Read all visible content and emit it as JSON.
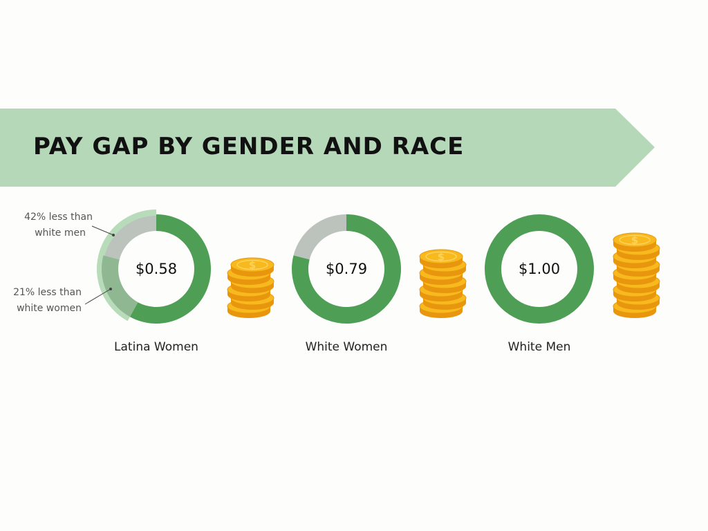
{
  "title": "PAY GAP BY GENDER AND RACE",
  "colors": {
    "banner": "#b5d8b8",
    "ring_value": "#4e9f55",
    "ring_gap": "#bcc3bd",
    "latina_outer_band": "#b8dcba",
    "latina_inner_band": "#8fb892",
    "coin_face": "#f8b91e",
    "coin_edge": "#e8960d",
    "coin_symbol": "#fcd25c"
  },
  "chart_data": {
    "type": "pie",
    "unit": "USD earned per $1.00 earned by white men",
    "categories": [
      "Latina Women",
      "White Women",
      "White Men"
    ],
    "values": [
      0.58,
      0.79,
      1.0
    ],
    "value_labels": [
      "$0.58",
      "$0.79",
      "$1.00"
    ],
    "coin_stack_sizes": [
      6,
      7,
      9
    ],
    "annotations": [
      {
        "target": "Latina Women",
        "line1": "42% less than",
        "line2": "white men"
      },
      {
        "target": "Latina Women",
        "line1": "21% less than",
        "line2": "white women"
      }
    ]
  }
}
